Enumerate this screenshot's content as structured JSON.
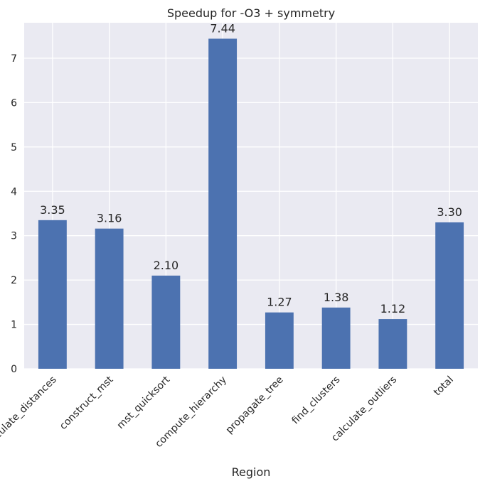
{
  "chart_data": {
    "type": "bar",
    "title": "Speedup for -O3 + symmetry",
    "xlabel": "Region",
    "ylabel": "",
    "categories": [
      "calculate_distances",
      "construct_mst",
      "mst_quicksort",
      "compute_hierarchy",
      "propagate_tree",
      "find_clusters",
      "calculate_outliers",
      "total"
    ],
    "values": [
      3.35,
      3.16,
      2.1,
      7.44,
      1.27,
      1.38,
      1.12,
      3.3
    ],
    "value_labels": [
      "3.35",
      "3.16",
      "2.10",
      "7.44",
      "1.27",
      "1.38",
      "1.12",
      "3.30"
    ],
    "ylim": [
      0,
      7.8
    ],
    "yticks": [
      0,
      1,
      2,
      3,
      4,
      5,
      6,
      7
    ],
    "grid": true,
    "legend": "none",
    "bar_color": "#4c72b0",
    "background_color": "#eaeaf2",
    "grid_color": "#ffffff"
  }
}
